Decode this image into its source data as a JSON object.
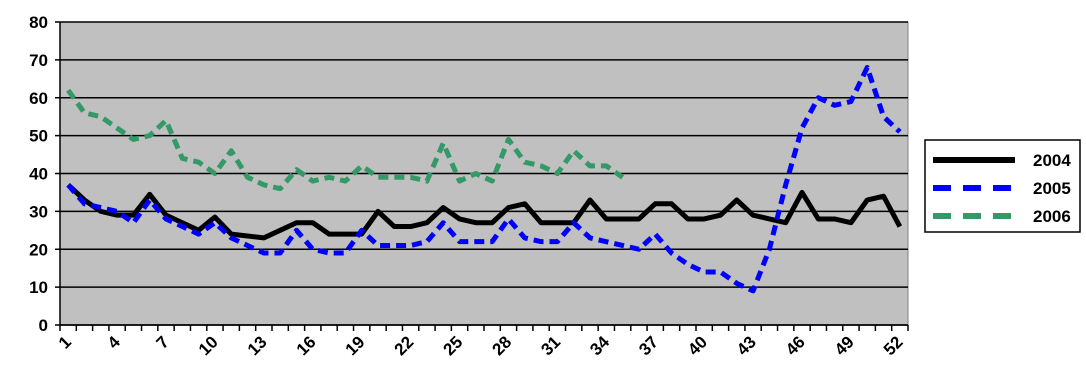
{
  "chart_data": {
    "type": "line",
    "categories": [
      "1",
      null,
      null,
      "4",
      null,
      null,
      "7",
      null,
      null,
      "10",
      null,
      null,
      "13",
      null,
      null,
      "16",
      null,
      null,
      "19",
      null,
      null,
      "22",
      null,
      null,
      "25",
      null,
      null,
      "28",
      null,
      null,
      "31",
      null,
      null,
      "34",
      null,
      null,
      "37",
      null,
      null,
      "40",
      null,
      null,
      "43",
      null,
      null,
      "46",
      null,
      null,
      "49",
      null,
      null,
      "52"
    ],
    "series": [
      {
        "name": "2004",
        "color": "#000000",
        "dash": "solid",
        "values": [
          37,
          33,
          30,
          29,
          29,
          34.5,
          29,
          27,
          25,
          28.5,
          24,
          23.5,
          23,
          25,
          27,
          27,
          24,
          24,
          24,
          30,
          26,
          26,
          27,
          31,
          28,
          27,
          27,
          31,
          32,
          27,
          27,
          27,
          33,
          28,
          28,
          28,
          32,
          32,
          28,
          28,
          29,
          33,
          29,
          28,
          27,
          35,
          28,
          28,
          27,
          33,
          34,
          26
        ]
      },
      {
        "name": "2005",
        "color": "#0000ff",
        "dash": "dashed",
        "values": [
          37,
          32,
          31,
          30,
          27,
          33,
          28,
          26,
          24,
          27,
          23,
          21,
          19,
          19,
          25,
          20,
          19,
          19,
          25,
          21,
          21,
          21,
          22,
          27,
          22,
          22,
          22,
          28,
          23,
          22,
          22,
          27,
          23,
          22,
          21,
          20,
          24,
          19,
          16,
          14,
          14,
          11,
          9,
          20,
          37,
          52,
          60,
          58,
          59,
          68,
          55,
          51
        ]
      },
      {
        "name": "2006",
        "color": "#339966",
        "dash": "dashed",
        "values": [
          62,
          56,
          55,
          52,
          49,
          50,
          54,
          44,
          43,
          40,
          46,
          39,
          37,
          36,
          41,
          38,
          39,
          38,
          42,
          39,
          39,
          39,
          38,
          48,
          38,
          40,
          38,
          49,
          43,
          42,
          40,
          46,
          42,
          42,
          39,
          null,
          null,
          null,
          null,
          null,
          null,
          null,
          null,
          null,
          null,
          null,
          null,
          null,
          null,
          null,
          null,
          null
        ]
      }
    ],
    "ylim": [
      0,
      80
    ],
    "yticks": [
      0,
      10,
      20,
      30,
      40,
      50,
      60,
      70,
      80
    ],
    "grid": true,
    "plot_background": "#c0c0c0",
    "legend": "right"
  }
}
